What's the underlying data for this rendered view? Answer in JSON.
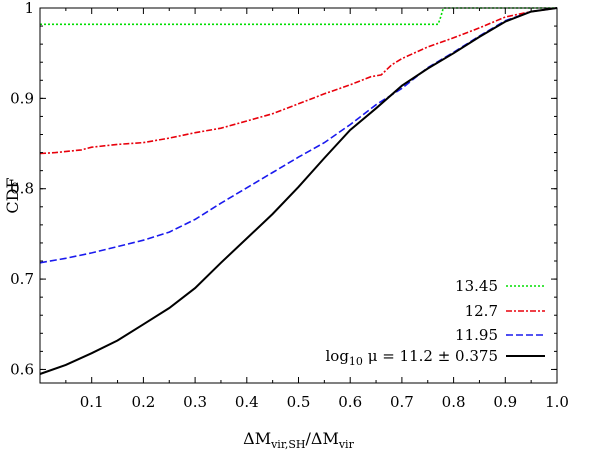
{
  "chart_data": {
    "type": "line",
    "title": "",
    "xlabel": "ΔM_vir,SH/ΔM_vir",
    "ylabel": "CDF",
    "xlim": [
      0,
      1.0
    ],
    "ylim": [
      0.585,
      1.0
    ],
    "grid": false,
    "legend_position": "bottom-right",
    "x_ticks": [
      "0.1",
      "0.2",
      "0.3",
      "0.4",
      "0.5",
      "0.6",
      "0.7",
      "0.8",
      "0.9",
      "1.0"
    ],
    "y_ticks": [
      "0.6",
      "0.7",
      "0.8",
      "0.9",
      "1"
    ],
    "series": [
      {
        "name": "13.45",
        "color": "#00dd00",
        "dash": "dotted",
        "points": [
          [
            0,
            0.982
          ],
          [
            0.77,
            0.982
          ],
          [
            0.775,
            0.99
          ],
          [
            0.78,
            1.0
          ],
          [
            1.0,
            1.0
          ]
        ]
      },
      {
        "name": "12.7",
        "color": "#e8000b",
        "dash": "dash-dot",
        "points": [
          [
            0,
            0.839
          ],
          [
            0.03,
            0.84
          ],
          [
            0.08,
            0.843
          ],
          [
            0.1,
            0.846
          ],
          [
            0.15,
            0.849
          ],
          [
            0.2,
            0.851
          ],
          [
            0.25,
            0.856
          ],
          [
            0.3,
            0.862
          ],
          [
            0.35,
            0.867
          ],
          [
            0.4,
            0.875
          ],
          [
            0.45,
            0.883
          ],
          [
            0.5,
            0.894
          ],
          [
            0.55,
            0.905
          ],
          [
            0.6,
            0.915
          ],
          [
            0.64,
            0.924
          ],
          [
            0.66,
            0.926
          ],
          [
            0.68,
            0.937
          ],
          [
            0.7,
            0.944
          ],
          [
            0.75,
            0.957
          ],
          [
            0.8,
            0.967
          ],
          [
            0.85,
            0.978
          ],
          [
            0.9,
            0.99
          ],
          [
            0.95,
            0.996
          ],
          [
            1.0,
            1.0
          ]
        ]
      },
      {
        "name": "11.95",
        "color": "#1a1aee",
        "dash": "dashed",
        "points": [
          [
            0,
            0.718
          ],
          [
            0.05,
            0.723
          ],
          [
            0.1,
            0.729
          ],
          [
            0.15,
            0.736
          ],
          [
            0.2,
            0.743
          ],
          [
            0.25,
            0.752
          ],
          [
            0.3,
            0.766
          ],
          [
            0.35,
            0.784
          ],
          [
            0.4,
            0.801
          ],
          [
            0.45,
            0.818
          ],
          [
            0.5,
            0.835
          ],
          [
            0.55,
            0.851
          ],
          [
            0.6,
            0.871
          ],
          [
            0.65,
            0.893
          ],
          [
            0.7,
            0.911
          ],
          [
            0.75,
            0.934
          ],
          [
            0.8,
            0.951
          ],
          [
            0.85,
            0.969
          ],
          [
            0.9,
            0.986
          ],
          [
            0.95,
            0.996
          ],
          [
            1.0,
            1.0
          ]
        ]
      },
      {
        "name": "log₁₀ μ = 11.2 ± 0.375",
        "color": "#000000",
        "dash": "solid",
        "points": [
          [
            0,
            0.595
          ],
          [
            0.05,
            0.605
          ],
          [
            0.1,
            0.618
          ],
          [
            0.15,
            0.632
          ],
          [
            0.2,
            0.65
          ],
          [
            0.25,
            0.668
          ],
          [
            0.3,
            0.69
          ],
          [
            0.35,
            0.718
          ],
          [
            0.4,
            0.745
          ],
          [
            0.45,
            0.772
          ],
          [
            0.5,
            0.802
          ],
          [
            0.55,
            0.834
          ],
          [
            0.6,
            0.865
          ],
          [
            0.65,
            0.889
          ],
          [
            0.7,
            0.914
          ],
          [
            0.75,
            0.933
          ],
          [
            0.8,
            0.95
          ],
          [
            0.85,
            0.968
          ],
          [
            0.9,
            0.985
          ],
          [
            0.95,
            0.996
          ],
          [
            1.0,
            1.0
          ]
        ]
      }
    ]
  }
}
